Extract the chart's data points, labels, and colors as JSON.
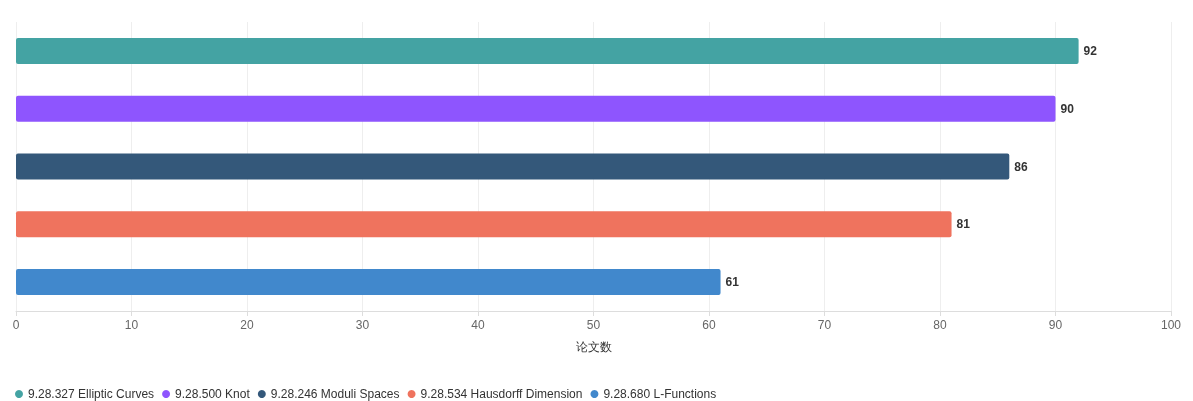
{
  "chart_data": {
    "type": "bar",
    "orientation": "horizontal",
    "xlabel": "论文数",
    "categories": [
      null,
      null,
      null,
      null,
      null
    ],
    "series": [
      {
        "name": "9.28.327 Elliptic Curves",
        "color": "#44a3a3",
        "values": [
          92,
          null,
          null,
          null,
          null
        ]
      },
      {
        "name": "9.28.500 Knot",
        "color": "#8e55fe",
        "values": [
          null,
          90,
          null,
          null,
          null
        ]
      },
      {
        "name": "9.28.246 Moduli Spaces",
        "color": "#34587a",
        "values": [
          null,
          null,
          86,
          null,
          null
        ]
      },
      {
        "name": "9.28.534 Hausdorff Dimension",
        "color": "#ef735e",
        "values": [
          null,
          null,
          null,
          81,
          null
        ]
      },
      {
        "name": "9.28.680 L-Functions",
        "color": "#4188cc",
        "values": [
          null,
          null,
          null,
          null,
          61
        ]
      }
    ],
    "xlim": [
      0,
      100
    ],
    "xticks": [
      0,
      10,
      20,
      30,
      40,
      50,
      60,
      70,
      80,
      90,
      100
    ],
    "grid": "x",
    "legend": "bottom",
    "data_labels": true
  }
}
